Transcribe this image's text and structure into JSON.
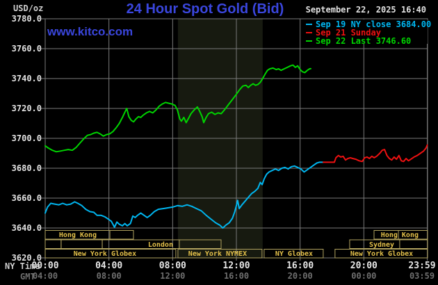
{
  "header": {
    "unit_label": "USD/oz",
    "title": "24 Hour Spot Gold (Bid)",
    "datetime": "September 22, 2025 16:40",
    "watermark": "www.kitco.com"
  },
  "legend": {
    "position": "top-right",
    "entries": [
      {
        "label": "Sep 19 NY close 3684.00",
        "color": "#00b6f0"
      },
      {
        "label": "Sep 21 Sunday",
        "color": "#ee1111"
      },
      {
        "label": "Sep 22 Last 3746.60",
        "color": "#00d400"
      }
    ]
  },
  "axes": {
    "y_ticks": [
      "3780.0",
      "3760.0",
      "3740.0",
      "3720.0",
      "3700.0",
      "3680.0",
      "3660.0",
      "3640.0",
      "3620.0"
    ],
    "x_rows": [
      {
        "label": "NY Time",
        "ticks": [
          "00:00",
          "04:00",
          "08:00",
          "12:00",
          "16:00",
          "20:00",
          "23:59"
        ]
      },
      {
        "label": "GMT",
        "ticks": [
          "04:00",
          "08:00",
          "12:00",
          "16:00",
          "20:00",
          "00:00",
          "03:59"
        ]
      }
    ]
  },
  "colors": {
    "title_blue": "#3a46dd",
    "grid": "#7a7a7a",
    "nymex_band": "#171a10",
    "session_border": "#b1a25f",
    "session_text": "#e3c04a"
  },
  "chart_data": {
    "type": "line",
    "title": "24 Hour Spot Gold (Bid)",
    "y_axis": {
      "unit": "USD/oz",
      "ylim": [
        3620,
        3780
      ],
      "tick_step": 20
    },
    "x_axis": {
      "range_hours": [
        0,
        24
      ],
      "tick_hours": [
        0,
        4,
        8,
        12,
        16,
        20,
        23.983
      ],
      "top_row": "NY Time",
      "bottom_row": "GMT"
    },
    "grid": true,
    "nymex_session_band_hours": [
      8.33,
      13.65
    ],
    "series": [
      {
        "name": "Sep 19 NY close",
        "color": "#00b6f0",
        "close_value": 3684.0,
        "points": [
          [
            0,
            3650
          ],
          [
            0.15,
            3654
          ],
          [
            0.35,
            3656.5
          ],
          [
            0.6,
            3656
          ],
          [
            0.85,
            3655.5
          ],
          [
            1.1,
            3656.5
          ],
          [
            1.35,
            3655.5
          ],
          [
            1.6,
            3656
          ],
          [
            1.85,
            3657.5
          ],
          [
            2.05,
            3656.5
          ],
          [
            2.3,
            3655
          ],
          [
            2.55,
            3652.5
          ],
          [
            2.8,
            3651
          ],
          [
            3.05,
            3650.5
          ],
          [
            3.25,
            3648.5
          ],
          [
            3.5,
            3648.5
          ],
          [
            3.75,
            3647.5
          ],
          [
            3.95,
            3646
          ],
          [
            4.15,
            3644.5
          ],
          [
            4.35,
            3640.5
          ],
          [
            4.5,
            3644
          ],
          [
            4.65,
            3642.5
          ],
          [
            4.85,
            3641.5
          ],
          [
            5,
            3643
          ],
          [
            5.15,
            3641.5
          ],
          [
            5.35,
            3643
          ],
          [
            5.5,
            3648
          ],
          [
            5.65,
            3647
          ],
          [
            5.8,
            3648.5
          ],
          [
            6,
            3650
          ],
          [
            6.2,
            3648.5
          ],
          [
            6.4,
            3647
          ],
          [
            6.6,
            3648.5
          ],
          [
            6.85,
            3651
          ],
          [
            7.1,
            3652.5
          ],
          [
            7.4,
            3653
          ],
          [
            7.7,
            3653.5
          ],
          [
            8,
            3654
          ],
          [
            8.3,
            3655
          ],
          [
            8.6,
            3654.5
          ],
          [
            8.9,
            3655.5
          ],
          [
            9.2,
            3654.5
          ],
          [
            9.5,
            3653
          ],
          [
            9.8,
            3651.5
          ],
          [
            10.1,
            3648.5
          ],
          [
            10.4,
            3646
          ],
          [
            10.7,
            3643.5
          ],
          [
            10.95,
            3642
          ],
          [
            11.15,
            3640
          ],
          [
            11.35,
            3642
          ],
          [
            11.55,
            3643.5
          ],
          [
            11.75,
            3646.5
          ],
          [
            11.9,
            3651
          ],
          [
            12,
            3655
          ],
          [
            12.08,
            3658.5
          ],
          [
            12.18,
            3653
          ],
          [
            12.35,
            3655.5
          ],
          [
            12.55,
            3658
          ],
          [
            12.75,
            3660.5
          ],
          [
            12.95,
            3663
          ],
          [
            13.15,
            3664.5
          ],
          [
            13.35,
            3666.5
          ],
          [
            13.5,
            3670.5
          ],
          [
            13.62,
            3669
          ],
          [
            13.75,
            3673
          ],
          [
            13.9,
            3676
          ],
          [
            14.05,
            3677.5
          ],
          [
            14.25,
            3678.5
          ],
          [
            14.45,
            3679.5
          ],
          [
            14.65,
            3678.5
          ],
          [
            14.85,
            3680
          ],
          [
            15.05,
            3680.5
          ],
          [
            15.25,
            3679.5
          ],
          [
            15.45,
            3681
          ],
          [
            15.65,
            3681.5
          ],
          [
            15.85,
            3680.5
          ],
          [
            16.05,
            3679.5
          ],
          [
            16.25,
            3677.5
          ],
          [
            16.45,
            3679
          ],
          [
            16.65,
            3680.5
          ],
          [
            16.85,
            3682
          ],
          [
            17.05,
            3683.5
          ],
          [
            17.2,
            3684
          ],
          [
            17.45,
            3684
          ]
        ]
      },
      {
        "name": "Sep 21 Sunday",
        "color": "#ee1111",
        "points": [
          [
            17.45,
            3684
          ],
          [
            18.15,
            3684
          ],
          [
            18.25,
            3687
          ],
          [
            18.4,
            3688.5
          ],
          [
            18.55,
            3687.5
          ],
          [
            18.7,
            3688
          ],
          [
            18.85,
            3685.5
          ],
          [
            19,
            3686.5
          ],
          [
            19.15,
            3687
          ],
          [
            19.3,
            3686.5
          ],
          [
            19.5,
            3686
          ],
          [
            19.7,
            3685
          ],
          [
            19.9,
            3684.5
          ],
          [
            20.05,
            3687
          ],
          [
            20.2,
            3687.5
          ],
          [
            20.35,
            3686.5
          ],
          [
            20.5,
            3688
          ],
          [
            20.65,
            3687
          ],
          [
            20.8,
            3688
          ],
          [
            21,
            3690
          ],
          [
            21.15,
            3692
          ],
          [
            21.3,
            3692.5
          ],
          [
            21.45,
            3688.5
          ],
          [
            21.6,
            3686.5
          ],
          [
            21.75,
            3685.5
          ],
          [
            21.9,
            3687.5
          ],
          [
            22.05,
            3686
          ],
          [
            22.2,
            3688.5
          ],
          [
            22.35,
            3685
          ],
          [
            22.5,
            3684.5
          ],
          [
            22.65,
            3686.5
          ],
          [
            22.8,
            3685
          ],
          [
            22.95,
            3686
          ],
          [
            23.15,
            3687.5
          ],
          [
            23.35,
            3688.5
          ],
          [
            23.55,
            3690
          ],
          [
            23.75,
            3691.5
          ],
          [
            23.9,
            3693.5
          ],
          [
            23.98,
            3695.5
          ]
        ]
      },
      {
        "name": "Sep 22 Last",
        "color": "#00d400",
        "last_value": 3746.6,
        "points": [
          [
            0,
            3695
          ],
          [
            0.2,
            3693.5
          ],
          [
            0.45,
            3692
          ],
          [
            0.7,
            3691
          ],
          [
            0.95,
            3691.5
          ],
          [
            1.2,
            3692
          ],
          [
            1.45,
            3692.5
          ],
          [
            1.7,
            3692
          ],
          [
            1.95,
            3694
          ],
          [
            2.2,
            3697
          ],
          [
            2.45,
            3700
          ],
          [
            2.65,
            3702
          ],
          [
            2.85,
            3702.5
          ],
          [
            3.05,
            3703.5
          ],
          [
            3.25,
            3704
          ],
          [
            3.45,
            3703
          ],
          [
            3.65,
            3701.5
          ],
          [
            3.85,
            3702.5
          ],
          [
            4.05,
            3703
          ],
          [
            4.25,
            3704.5
          ],
          [
            4.45,
            3707
          ],
          [
            4.65,
            3710
          ],
          [
            4.85,
            3714
          ],
          [
            5,
            3717.5
          ],
          [
            5.12,
            3720
          ],
          [
            5.25,
            3714.5
          ],
          [
            5.4,
            3712
          ],
          [
            5.55,
            3711
          ],
          [
            5.7,
            3713
          ],
          [
            5.85,
            3714.5
          ],
          [
            6,
            3714
          ],
          [
            6.15,
            3715.5
          ],
          [
            6.35,
            3717
          ],
          [
            6.55,
            3718
          ],
          [
            6.75,
            3717
          ],
          [
            6.95,
            3719
          ],
          [
            7.15,
            3721.5
          ],
          [
            7.35,
            3723
          ],
          [
            7.55,
            3724
          ],
          [
            7.75,
            3723.5
          ],
          [
            7.95,
            3723
          ],
          [
            8.15,
            3722
          ],
          [
            8.3,
            3719
          ],
          [
            8.45,
            3713
          ],
          [
            8.55,
            3711.5
          ],
          [
            8.7,
            3714
          ],
          [
            8.85,
            3710.5
          ],
          [
            9,
            3713.5
          ],
          [
            9.15,
            3716.5
          ],
          [
            9.35,
            3719
          ],
          [
            9.55,
            3721
          ],
          [
            9.7,
            3718
          ],
          [
            9.85,
            3714.5
          ],
          [
            9.95,
            3710.5
          ],
          [
            10.1,
            3714
          ],
          [
            10.25,
            3716.5
          ],
          [
            10.45,
            3717.5
          ],
          [
            10.65,
            3716
          ],
          [
            10.85,
            3717
          ],
          [
            11.05,
            3716.5
          ],
          [
            11.25,
            3719
          ],
          [
            11.5,
            3722.5
          ],
          [
            11.75,
            3726
          ],
          [
            12,
            3729.5
          ],
          [
            12.2,
            3732.5
          ],
          [
            12.4,
            3735
          ],
          [
            12.6,
            3735.5
          ],
          [
            12.75,
            3734
          ],
          [
            12.9,
            3735.5
          ],
          [
            13.05,
            3736.5
          ],
          [
            13.2,
            3735.5
          ],
          [
            13.35,
            3736
          ],
          [
            13.5,
            3737.5
          ],
          [
            13.65,
            3740
          ],
          [
            13.8,
            3743
          ],
          [
            13.95,
            3745.5
          ],
          [
            14.1,
            3746.5
          ],
          [
            14.3,
            3747
          ],
          [
            14.5,
            3746
          ],
          [
            14.65,
            3746.5
          ],
          [
            14.8,
            3745.5
          ],
          [
            15,
            3746.5
          ],
          [
            15.2,
            3747.5
          ],
          [
            15.4,
            3748.5
          ],
          [
            15.55,
            3749
          ],
          [
            15.7,
            3747.5
          ],
          [
            15.85,
            3748.5
          ],
          [
            16,
            3746
          ],
          [
            16.15,
            3744.5
          ],
          [
            16.3,
            3744
          ],
          [
            16.45,
            3745.5
          ],
          [
            16.6,
            3746.5
          ],
          [
            16.67,
            3746.6
          ]
        ]
      }
    ],
    "sessions": [
      {
        "row": 1,
        "t1": 0.0,
        "t2": 5.54,
        "label": "Hong Kong",
        "label_t": 2.05,
        "dividers": [
          4.06
        ]
      },
      {
        "row": 1,
        "t1": 20.64,
        "t2": 24.0,
        "label": "Hong Kong",
        "label_t": 22.25,
        "dividers": [
          22.17
        ]
      },
      {
        "row": 2,
        "t1": 0.0,
        "t2": 1.0,
        "label": "",
        "label_t": null,
        "dividers": []
      },
      {
        "row": 2,
        "t1": 1.0,
        "t2": 3.58,
        "label": "",
        "label_t": null,
        "dividers": []
      },
      {
        "row": 2,
        "t1": 3.58,
        "t2": 11.04,
        "label": "London",
        "label_t": 7.24,
        "dividers": [
          8.42
        ]
      },
      {
        "row": 2,
        "t1": 19.11,
        "t2": 24.0,
        "label": "Sydney",
        "label_t": 21.12,
        "dividers": [
          22.25
        ]
      },
      {
        "row": 3,
        "t1": 0.0,
        "t2": 8.2,
        "label": "New York Globex",
        "label_t": 3.75,
        "dividers": []
      },
      {
        "row": 3,
        "t1": 8.33,
        "t2": 13.61,
        "label": "New York NYMEX",
        "label_t": 10.82,
        "dividers": []
      },
      {
        "row": 3,
        "t1": 13.74,
        "t2": 17.45,
        "label": "NY Globex",
        "label_t": 15.62,
        "dividers": []
      },
      {
        "row": 3,
        "t1": 18.19,
        "t2": 24.0,
        "label": "New York Globex",
        "label_t": 21.12,
        "dividers": []
      }
    ]
  }
}
